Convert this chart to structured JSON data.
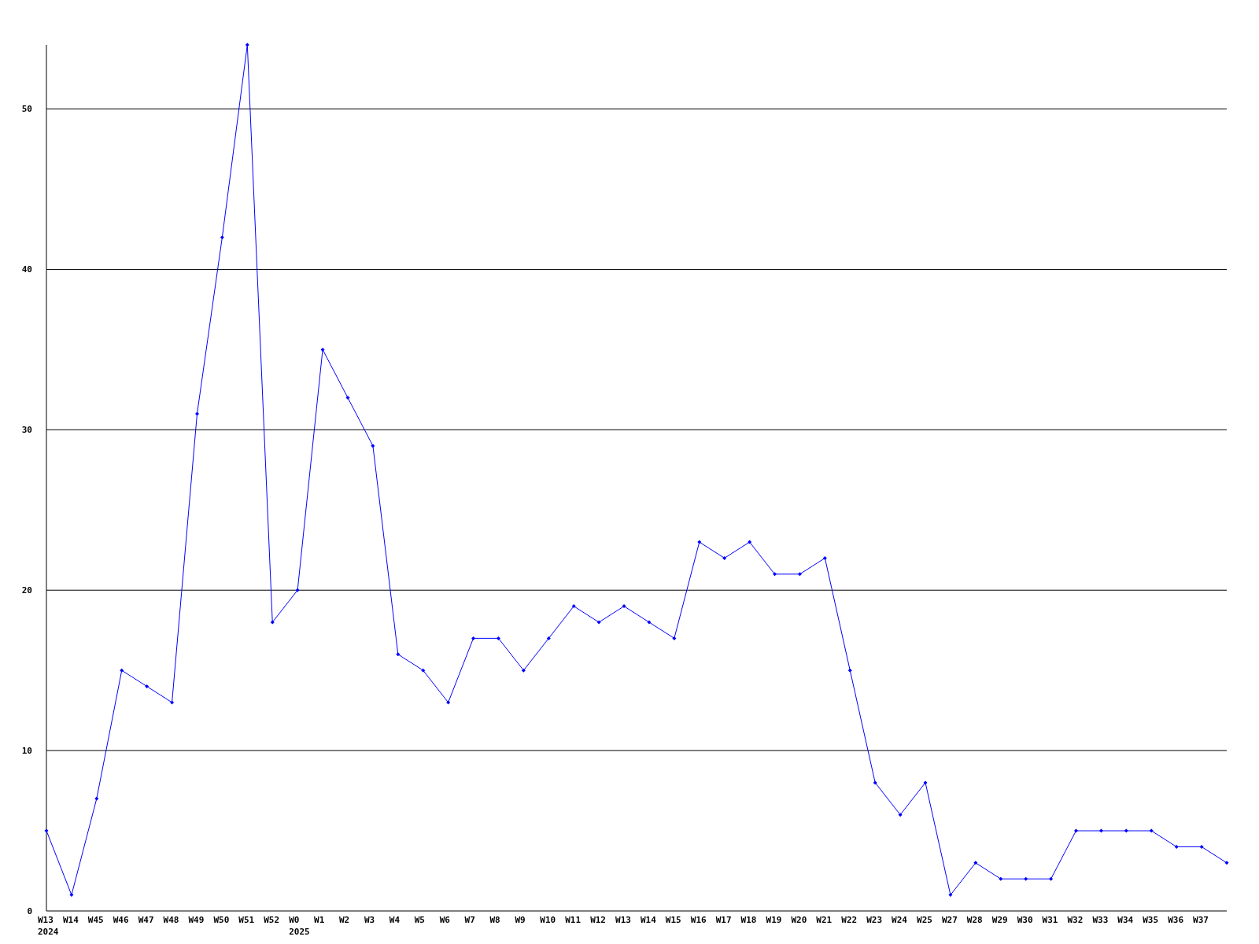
{
  "chart_data": {
    "type": "line",
    "categories": [
      "W13\n2024",
      "W14",
      "W45",
      "W46",
      "W47",
      "W48",
      "W49",
      "W50",
      "W51",
      "W52",
      "W0\n2025",
      "W1",
      "W2",
      "W3",
      "W4",
      "W5",
      "W6",
      "W7",
      "W8",
      "W9",
      "W10",
      "W11",
      "W12",
      "W13",
      "W14",
      "W15",
      "W16",
      "W17",
      "W18",
      "W19",
      "W20",
      "W21",
      "W22",
      "W23",
      "W24",
      "W25",
      "W27",
      "W28",
      "W29",
      "W30",
      "W31",
      "W32",
      "W33",
      "W34",
      "W35",
      "W36",
      "W37",
      null
    ],
    "series": [
      {
        "color": "#0000ff",
        "values": [
          5,
          1,
          7,
          15,
          14,
          13,
          31,
          42,
          54,
          18,
          20,
          35,
          32,
          29,
          16,
          15,
          13,
          17,
          17,
          15,
          17,
          19,
          18,
          19,
          18,
          17,
          23,
          22,
          23,
          21,
          21,
          22,
          15,
          8,
          6,
          8,
          1,
          3,
          2,
          2,
          2,
          5,
          5,
          5,
          5,
          4,
          4,
          3
        ]
      }
    ],
    "ylim": [
      0,
      54
    ],
    "yticks": [
      0,
      10,
      20,
      30,
      40,
      50
    ],
    "grid": "y",
    "marker": "diamond",
    "line_style": "solid"
  }
}
